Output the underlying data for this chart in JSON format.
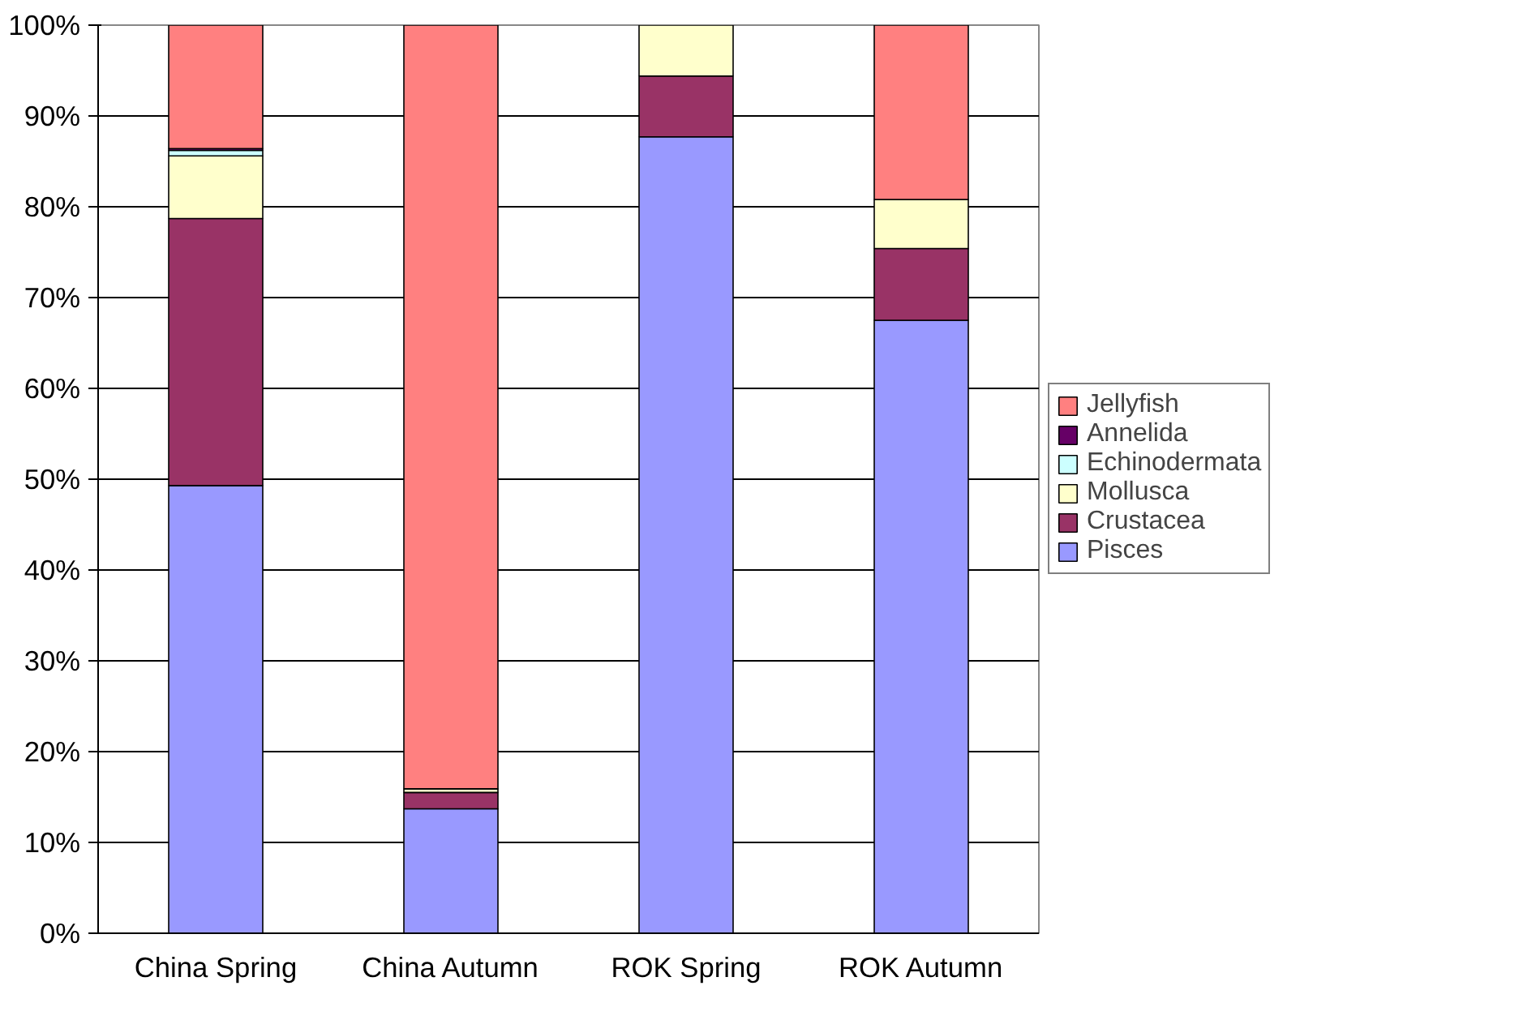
{
  "chart_data": {
    "type": "bar",
    "stacked": true,
    "categories": [
      "China Spring",
      "China Autumn",
      "ROK Spring",
      "ROK Autumn"
    ],
    "series": [
      {
        "name": "Pisces",
        "color": "#9999ff",
        "values": [
          49.3,
          13.7,
          87.7,
          67.5
        ]
      },
      {
        "name": "Crustacea",
        "color": "#993366",
        "values": [
          29.4,
          1.8,
          6.7,
          7.9
        ]
      },
      {
        "name": "Mollusca",
        "color": "#ffffcc",
        "values": [
          6.9,
          0.4,
          5.6,
          5.4
        ]
      },
      {
        "name": "Echinodermata",
        "color": "#ccffff",
        "values": [
          0.6,
          null,
          null,
          null
        ]
      },
      {
        "name": "Annelida",
        "color": "#660066",
        "values": [
          0.2,
          null,
          null,
          null
        ]
      },
      {
        "name": "Jellyfish",
        "color": "#ff8080",
        "values": [
          13.6,
          84.1,
          null,
          19.2
        ]
      }
    ],
    "ylim": [
      0,
      100
    ],
    "yticks": [
      {
        "value": 0,
        "label": "0%"
      },
      {
        "value": 10,
        "label": "10%"
      },
      {
        "value": 20,
        "label": "20%"
      },
      {
        "value": 30,
        "label": "30%"
      },
      {
        "value": 40,
        "label": "40%"
      },
      {
        "value": 50,
        "label": "50%"
      },
      {
        "value": 60,
        "label": "60%"
      },
      {
        "value": 70,
        "label": "70%"
      },
      {
        "value": 80,
        "label": "80%"
      },
      {
        "value": 90,
        "label": "90%"
      },
      {
        "value": 100,
        "label": "100%"
      }
    ],
    "grid": "y",
    "legend": "right"
  }
}
